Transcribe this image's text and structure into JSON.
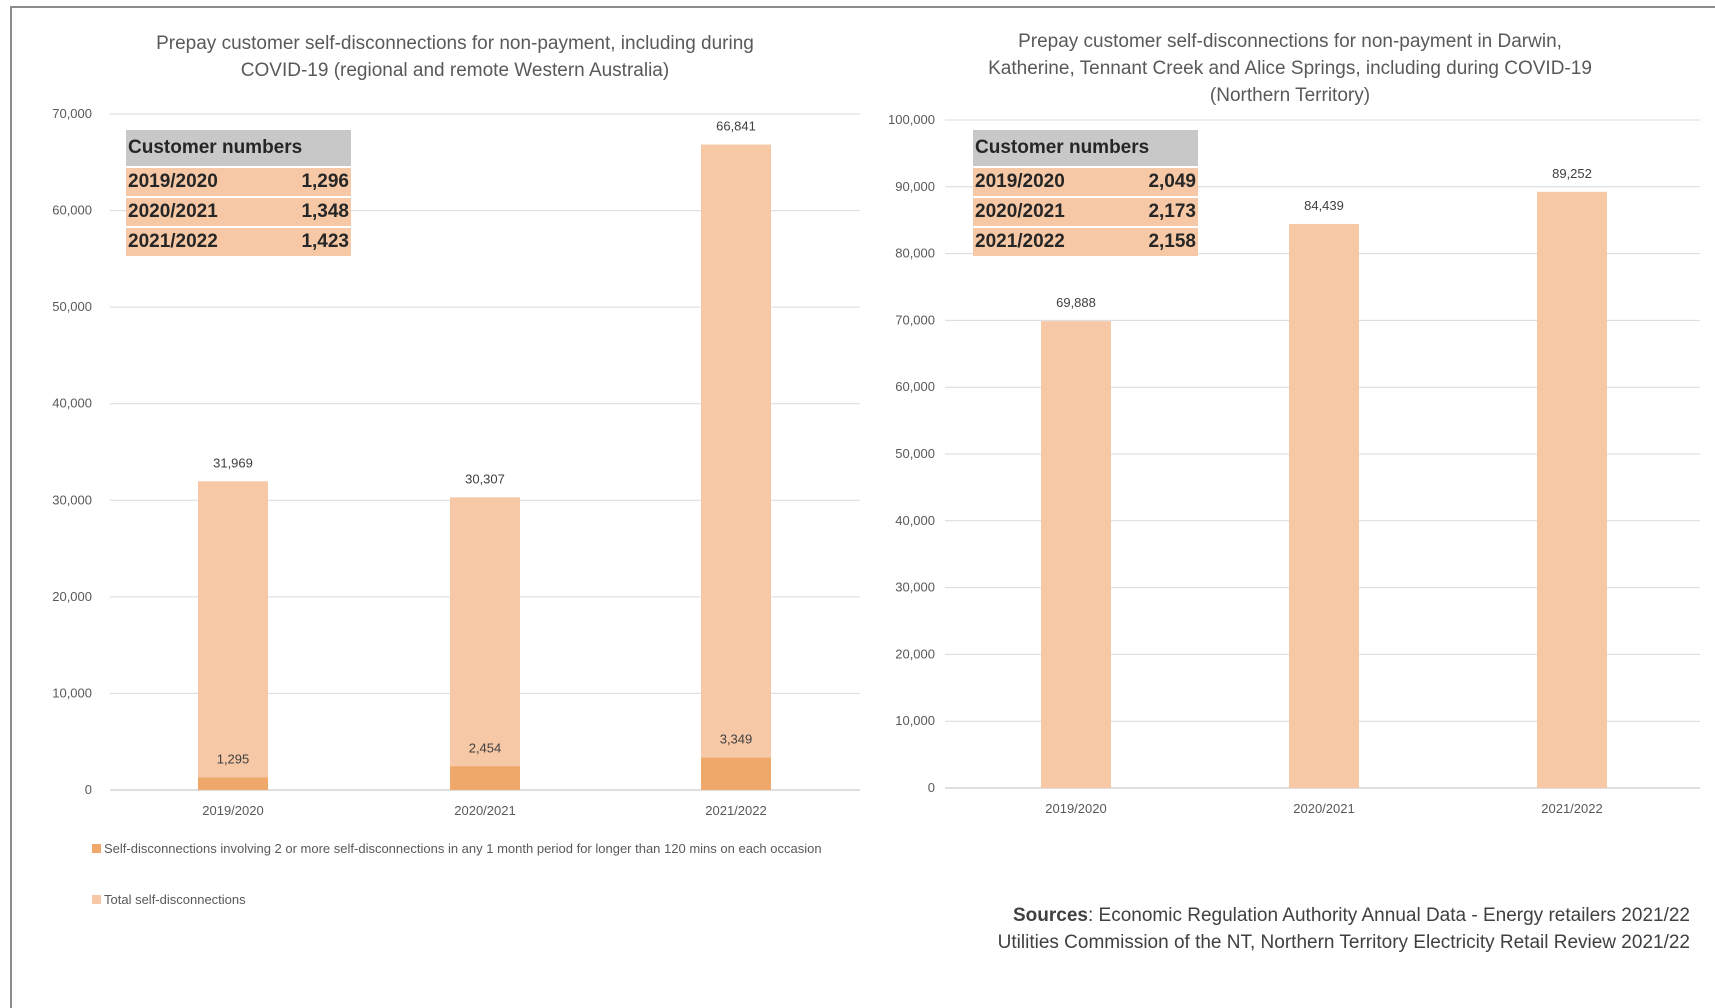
{
  "colors": {
    "total": "#f6c8a6",
    "multi": "#f0a86a",
    "grid": "#d9d9d9",
    "axis": "#bfbfbf"
  },
  "left_table": {
    "header": "Customer numbers",
    "rows": [
      {
        "year": "2019/2020",
        "value": "1,296"
      },
      {
        "year": "2020/2021",
        "value": "1,348"
      },
      {
        "year": "2021/2022",
        "value": "1,423"
      }
    ]
  },
  "right_table": {
    "header": "Customer numbers",
    "rows": [
      {
        "year": "2019/2020",
        "value": "2,049"
      },
      {
        "year": "2020/2021",
        "value": "2,173"
      },
      {
        "year": "2021/2022",
        "value": "2,158"
      }
    ]
  },
  "legend": {
    "multi": "Self-disconnections involving 2 or more self-disconnections in any 1 month period for longer than 120 mins on each occasion",
    "total": "Total self-disconnections"
  },
  "sources": {
    "label": "Sources",
    "line1": ": Economic Regulation Authority Annual Data - Energy retailers 2021/22",
    "line2": "Utilities Commission of the NT, Northern Territory Electricity Retail Review 2021/22"
  },
  "chart_data": [
    {
      "type": "bar",
      "title": "Prepay customer self-disconnections for non-payment, including during\nCOVID-19 (regional and remote Western Australia)",
      "categories": [
        "2019/2020",
        "2020/2021",
        "2021/2022"
      ],
      "series": [
        {
          "name": "Total self-disconnections",
          "values": [
            31969,
            30307,
            66841
          ],
          "labels": [
            "31,969",
            "30,307",
            "66,841"
          ]
        },
        {
          "name": "Self-disconnections involving 2 or more self-disconnections in any 1 month period for longer than 120 mins on each occasion",
          "values": [
            1295,
            2454,
            3349
          ],
          "labels": [
            "1,295",
            "2,454",
            "3,349"
          ]
        }
      ],
      "ylim": [
        0,
        70000
      ],
      "yticks": [
        0,
        10000,
        20000,
        30000,
        40000,
        50000,
        60000,
        70000
      ],
      "ytick_labels": [
        "0",
        "10,000",
        "20,000",
        "30,000",
        "40,000",
        "50,000",
        "60,000",
        "70,000"
      ],
      "grid": true,
      "legend": "bottom-left"
    },
    {
      "type": "bar",
      "title": "Prepay customer self-disconnections for non-payment in Darwin,\nKatherine, Tennant Creek and Alice Springs, including during COVID-19\n(Northern Territory)",
      "categories": [
        "2019/2020",
        "2020/2021",
        "2021/2022"
      ],
      "series": [
        {
          "values": [
            69888,
            84439,
            89252
          ],
          "labels": [
            "69,888",
            "84,439",
            "89,252"
          ]
        }
      ],
      "ylim": [
        0,
        100000
      ],
      "yticks": [
        0,
        10000,
        20000,
        30000,
        40000,
        50000,
        60000,
        70000,
        80000,
        90000,
        100000
      ],
      "ytick_labels": [
        "0",
        "10,000",
        "20,000",
        "30,000",
        "40,000",
        "50,000",
        "60,000",
        "70,000",
        "80,000",
        "90,000",
        "100,000"
      ],
      "grid": true
    }
  ]
}
